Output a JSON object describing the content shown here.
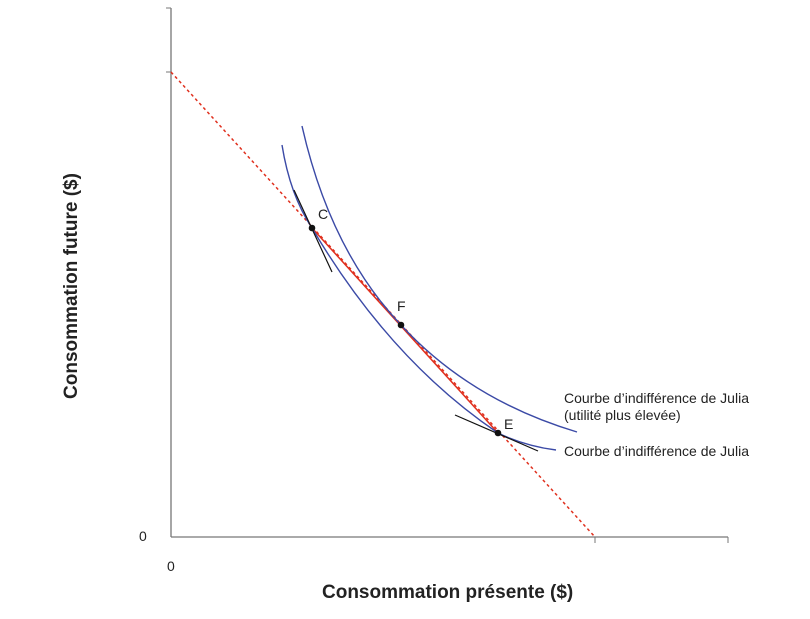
{
  "axes": {
    "x_label": "Consommation présente ($)",
    "y_label": "Consommation future ($)",
    "x_origin": "0",
    "y_origin": "0"
  },
  "points": {
    "c": "C",
    "f": "F",
    "e": "E"
  },
  "curves": {
    "higher_line1": "Courbe d’indifférence de Julia",
    "higher_line2": "(utilité plus élevée)",
    "lower": "Courbe d’indifférence de Julia"
  },
  "colors": {
    "curve": "#3b4aa6",
    "budget": "#e0301e",
    "axis": "#777777"
  }
}
